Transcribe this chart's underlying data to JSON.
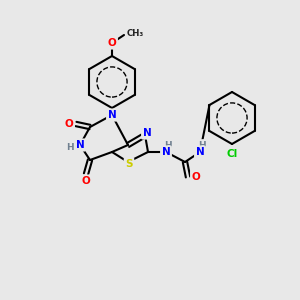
{
  "background_color": "#e8e8e8",
  "bond_color": "#000000",
  "atom_colors": {
    "N": "#0000ff",
    "O": "#ff0000",
    "S": "#cccc00",
    "Cl": "#00cc00",
    "H": "#708090",
    "C": "#000000"
  },
  "figsize": [
    3.0,
    3.0
  ],
  "dpi": 100
}
